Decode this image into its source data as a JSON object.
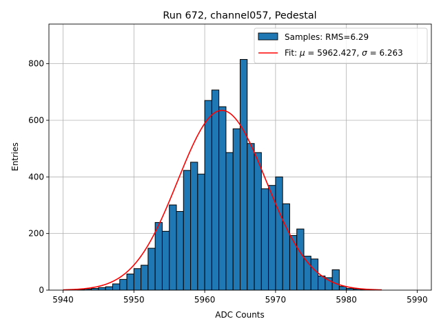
{
  "chart_data": {
    "type": "bar",
    "title": "Run 672, channel057, Pedestal",
    "xlabel": "ADC Counts",
    "ylabel": "Entries",
    "xlim": [
      5938,
      5992
    ],
    "ylim": [
      0,
      940
    ],
    "xticks": [
      5940,
      5950,
      5960,
      5970,
      5980,
      5990
    ],
    "yticks": [
      0,
      200,
      400,
      600,
      800
    ],
    "grid": true,
    "legend_position": "top-right",
    "bin_width": 1,
    "histogram": {
      "name": "Samples: RMS=6.29",
      "color": "#1f77b4",
      "edge_color": "#000000",
      "bins": [
        5940,
        5941,
        5942,
        5943,
        5944,
        5945,
        5946,
        5947,
        5948,
        5949,
        5950,
        5951,
        5952,
        5953,
        5954,
        5955,
        5956,
        5957,
        5958,
        5959,
        5960,
        5961,
        5962,
        5963,
        5964,
        5965,
        5966,
        5967,
        5968,
        5969,
        5970,
        5971,
        5972,
        5973,
        5974,
        5975,
        5976,
        5977,
        5978,
        5979,
        5980,
        5981,
        5982,
        5983,
        5984
      ],
      "values": [
        0,
        0,
        2,
        4,
        6,
        9,
        12,
        22,
        38,
        57,
        76,
        88,
        148,
        239,
        208,
        301,
        278,
        423,
        452,
        410,
        670,
        707,
        648,
        486,
        570,
        815,
        518,
        486,
        358,
        370,
        400,
        305,
        193,
        216,
        120,
        110,
        50,
        44,
        72,
        13,
        6,
        4,
        2,
        1,
        0
      ]
    },
    "fit": {
      "name": "Fit: μ = 5962.427, σ = 6.263",
      "color": "#ff0000",
      "mu": 5962.427,
      "sigma": 6.263,
      "amplitude": 635,
      "x_range": [
        5940,
        5985
      ]
    }
  },
  "legend": {
    "hist_label_prefix": "Samples: RMS=6.29",
    "fit_label_prefix": "Fit: ",
    "fit_mu_symbol": "μ",
    "fit_mu_value": " = 5962.427, ",
    "fit_sigma_symbol": "σ",
    "fit_sigma_value": " = 6.263"
  }
}
